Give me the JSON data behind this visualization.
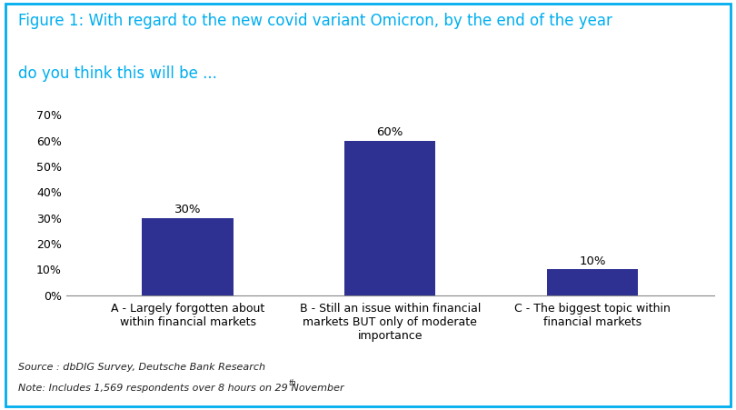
{
  "title_line1": "Figure 1: With regard to the new covid variant Omicron, by the end of the year",
  "title_line2": "do you think this will be ...",
  "title_color": "#00AEEF",
  "categories": [
    "A - Largely forgotten about\nwithin financial markets",
    "B - Still an issue within financial\nmarkets BUT only of moderate\nimportance",
    "C - The biggest topic within\nfinancial markets"
  ],
  "values": [
    30,
    60,
    10
  ],
  "bar_color": "#2E3192",
  "bar_labels": [
    "30%",
    "60%",
    "10%"
  ],
  "ylim": [
    0,
    70
  ],
  "yticks": [
    0,
    10,
    20,
    30,
    40,
    50,
    60,
    70
  ],
  "ytick_labels": [
    "0%",
    "10%",
    "20%",
    "30%",
    "40%",
    "50%",
    "60%",
    "70%"
  ],
  "source_line1": "Source : dbDIG Survey, Deutsche Bank Research",
  "source_line2_pre": "Note: Includes 1,569 respondents over 8 hours on 29",
  "source_superscript": "th",
  "source_line2_post": " November",
  "background_color": "#FFFFFF",
  "border_color": "#00AEEF",
  "xlabel_fontsize": 9,
  "ylabel_fontsize": 9,
  "bar_label_fontsize": 9.5,
  "title_fontsize": 12,
  "source_fontsize": 8
}
